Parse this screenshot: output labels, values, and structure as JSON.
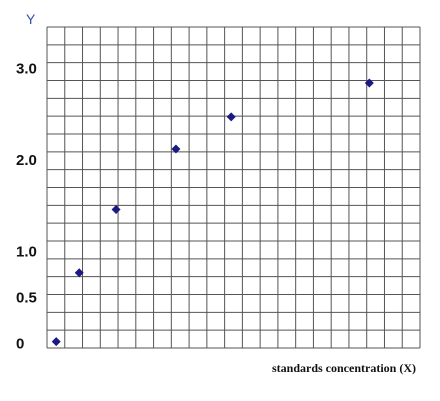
{
  "chart_data": {
    "type": "scatter",
    "title": "",
    "xlabel": "standards concentration (X)",
    "ylabel": "Y",
    "ytick_labels": [
      {
        "value": 0,
        "label": "0"
      },
      {
        "value": 0.5,
        "label": "0.5"
      },
      {
        "value": 1.0,
        "label": "1.0"
      },
      {
        "value": 2.0,
        "label": "2.0"
      },
      {
        "value": 3.0,
        "label": "3.0"
      }
    ],
    "grid": true,
    "marker": "diamond",
    "marker_color": "#1a1a80",
    "grid_color": "#555555",
    "series": [
      {
        "x": [
          0.1,
          0.6,
          1.4,
          2.7,
          3.9,
          6.9
        ],
        "y": [
          0.02,
          0.77,
          1.46,
          2.12,
          2.47,
          2.84
        ]
      }
    ],
    "xlim": [
      -0.1,
      8.0
    ],
    "ylim": [
      -0.05,
      3.45
    ]
  }
}
